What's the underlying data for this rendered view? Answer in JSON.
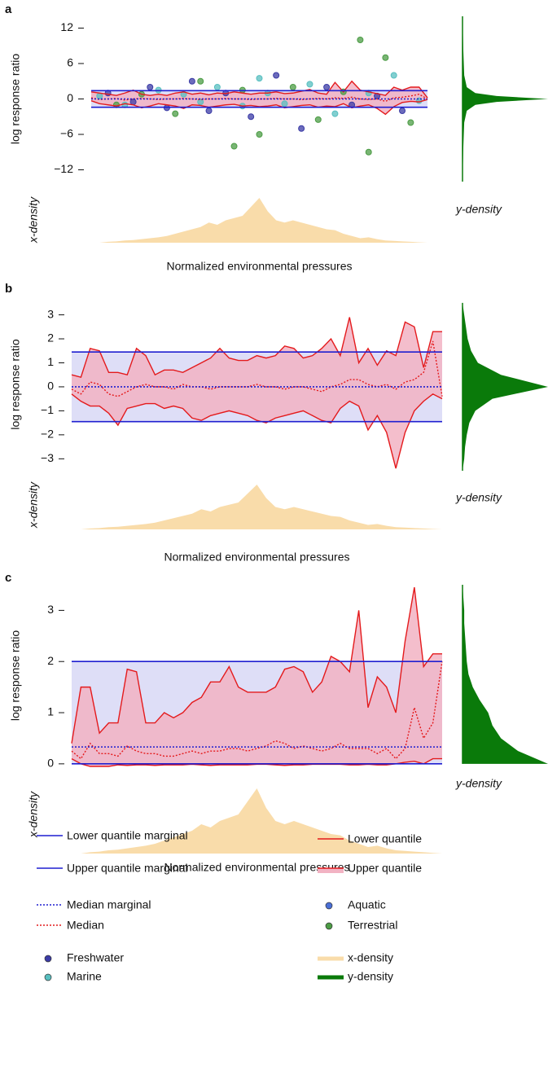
{
  "chart_data": [
    {
      "type": "scatter",
      "panel": "a",
      "ylabel": "log response ratio",
      "xlabel": "Normalized environmental pressures",
      "x_density_label": "x-density",
      "y_density_label": "y-density",
      "ylim": [
        -14,
        14
      ],
      "yticks": [
        {
          "value": -12,
          "label": "−12"
        },
        {
          "value": -6,
          "label": "−6"
        },
        0,
        6,
        12
      ],
      "xlim": [
        0,
        40
      ],
      "x": [
        0,
        1,
        2,
        3,
        4,
        5,
        6,
        7,
        8,
        9,
        10,
        11,
        12,
        13,
        14,
        15,
        16,
        17,
        18,
        19,
        20,
        21,
        22,
        23,
        24,
        25,
        26,
        27,
        28,
        29,
        30,
        31,
        32,
        33,
        34,
        35,
        36,
        37,
        38,
        39,
        40
      ],
      "upper_quantile": [
        1.2,
        1.0,
        0.8,
        0.6,
        1.0,
        1.5,
        0.8,
        0.6,
        0.8,
        0.6,
        1.0,
        1.2,
        0.8,
        1.0,
        0.7,
        1.0,
        0.9,
        1.2,
        1.0,
        0.8,
        1.0,
        1.0,
        1.2,
        0.9,
        1.0,
        1.3,
        1.6,
        1.0,
        0.8,
        2.8,
        1.2,
        3.0,
        1.5,
        1.2,
        0.9,
        0.6,
        2.0,
        1.5,
        2.0,
        2.0,
        0.2
      ],
      "lower_quantile": [
        -0.3,
        -0.8,
        -1,
        -1.2,
        -0.8,
        -1,
        -1.5,
        -1.2,
        -0.8,
        -1,
        -1.2,
        -1.6,
        -1,
        -1.1,
        -1.4,
        -1.2,
        -1,
        -0.9,
        -1.2,
        -1.1,
        -1.3,
        -1.2,
        -1,
        -1.5,
        -1.3,
        -1.1,
        -1,
        -1.4,
        -1.2,
        -1.3,
        -0.8,
        -1.5,
        -1.2,
        -1,
        -1.6,
        -2.6,
        -1.3,
        -0.6,
        -0.4,
        -0.5,
        -0.1
      ],
      "median": [
        0.2,
        -0.1,
        0,
        0.1,
        -0.2,
        0,
        0.1,
        0,
        -0.1,
        0,
        0,
        0.1,
        0,
        -0.1,
        0,
        0,
        0.1,
        0,
        0,
        -0.1,
        0,
        0,
        0.1,
        0,
        0,
        -0.1,
        0,
        0.1,
        0,
        0.2,
        0.1,
        0.3,
        0,
        -0.1,
        0,
        -0.4,
        0.2,
        0.3,
        0.5,
        0.8,
        0
      ],
      "marginals": {
        "lower": -1.4,
        "upper": 1.4,
        "median": 0
      },
      "points": [
        {
          "color": "#3b3ba6",
          "x": [
            2,
            5,
            7,
            9,
            12,
            14,
            16,
            19,
            22,
            25,
            28,
            31,
            34,
            37
          ],
          "y": [
            1,
            -0.5,
            2,
            -1.5,
            3,
            -2,
            1,
            -3,
            4,
            -5,
            2,
            -1,
            0.5,
            -2
          ]
        },
        {
          "color": "#58bfc0",
          "x": [
            1,
            4,
            8,
            11,
            13,
            15,
            18,
            20,
            21,
            23,
            26,
            29,
            33,
            36,
            39
          ],
          "y": [
            0.5,
            -1,
            1.5,
            0.8,
            -0.5,
            2,
            -1.2,
            3.5,
            1,
            -0.8,
            2.5,
            -2.5,
            1,
            4,
            -0.3
          ]
        },
        {
          "color": "#4c9c45",
          "x": [
            3,
            6,
            10,
            13,
            17,
            18,
            20,
            24,
            27,
            30,
            32,
            33,
            35,
            38
          ],
          "y": [
            -1,
            0.8,
            -2.5,
            3,
            -8,
            1.5,
            -6,
            2,
            -3.5,
            1.2,
            10,
            -9,
            7,
            -4
          ]
        }
      ],
      "x_density": [
        0,
        0,
        0.02,
        0.03,
        0.05,
        0.06,
        0.08,
        0.1,
        0.12,
        0.15,
        0.2,
        0.25,
        0.3,
        0.35,
        0.45,
        0.4,
        0.5,
        0.55,
        0.6,
        0.8,
        1.0,
        0.7,
        0.5,
        0.45,
        0.5,
        0.45,
        0.4,
        0.35,
        0.3,
        0.28,
        0.2,
        0.15,
        0.1,
        0.12,
        0.08,
        0.05,
        0.04,
        0.03,
        0.02,
        0.01,
        0
      ],
      "y_density": {
        "y": [
          -14,
          -8,
          -4,
          -2,
          -1,
          -0.5,
          0,
          0.5,
          1,
          2,
          4,
          8,
          14
        ],
        "values": [
          0,
          0.01,
          0.02,
          0.05,
          0.15,
          0.4,
          1.0,
          0.4,
          0.15,
          0.05,
          0.02,
          0.01,
          0
        ]
      }
    },
    {
      "type": "quantile",
      "panel": "b",
      "ylabel": "log response ratio",
      "xlabel": "Normalized environmental pressures",
      "x_density_label": "x-density",
      "y_density_label": "y-density",
      "ylim": [
        -3.6,
        3.8
      ],
      "yticks": [
        {
          "value": -3,
          "label": "−3"
        },
        {
          "value": -2,
          "label": "−2"
        },
        {
          "value": -1,
          "label": "−1"
        },
        0,
        1,
        2,
        3
      ],
      "xlim": [
        0,
        40
      ],
      "x": [
        0,
        1,
        2,
        3,
        4,
        5,
        6,
        7,
        8,
        9,
        10,
        11,
        12,
        13,
        14,
        15,
        16,
        17,
        18,
        19,
        20,
        21,
        22,
        23,
        24,
        25,
        26,
        27,
        28,
        29,
        30,
        31,
        32,
        33,
        34,
        35,
        36,
        37,
        38,
        39,
        40
      ],
      "upper_quantile": [
        0.5,
        0.4,
        1.6,
        1.5,
        0.6,
        0.6,
        0.5,
        1.6,
        1.3,
        0.5,
        0.7,
        0.7,
        0.6,
        0.8,
        1.0,
        1.2,
        1.6,
        1.2,
        1.1,
        1.1,
        1.3,
        1.2,
        1.3,
        1.7,
        1.6,
        1.2,
        1.3,
        1.6,
        2.0,
        1.3,
        2.9,
        1.0,
        1.6,
        0.9,
        1.5,
        1.3,
        2.7,
        2.5,
        0.8,
        2.3,
        2.3
      ],
      "lower_quantile": [
        -0.3,
        -0.6,
        -0.8,
        -0.8,
        -1.1,
        -1.6,
        -0.9,
        -0.8,
        -0.7,
        -0.7,
        -0.9,
        -0.8,
        -0.9,
        -1.3,
        -1.4,
        -1.2,
        -1.1,
        -1.0,
        -1.1,
        -1.2,
        -1.4,
        -1.5,
        -1.3,
        -1.2,
        -1.1,
        -1.0,
        -1.2,
        -1.4,
        -1.5,
        -0.9,
        -0.6,
        -0.8,
        -1.8,
        -1.2,
        -1.9,
        -3.4,
        -1.9,
        -1.0,
        -0.6,
        -0.3,
        -0.5
      ],
      "median": [
        -0.1,
        -0.3,
        0.2,
        0.1,
        -0.3,
        -0.4,
        -0.2,
        0,
        0.1,
        0,
        0,
        -0.1,
        0.1,
        0,
        0,
        -0.1,
        0,
        0,
        0,
        0,
        0.1,
        0,
        0,
        -0.1,
        0,
        0,
        -0.1,
        -0.2,
        0,
        0.1,
        0.3,
        0.3,
        0.1,
        0,
        0.1,
        -0.1,
        0.2,
        0.3,
        0.6,
        1.9,
        -0.4
      ],
      "marginals": {
        "lower": -1.45,
        "upper": 1.45,
        "median": 0
      },
      "x_density": [
        0,
        0,
        0.02,
        0.03,
        0.05,
        0.06,
        0.08,
        0.1,
        0.12,
        0.15,
        0.2,
        0.25,
        0.3,
        0.35,
        0.45,
        0.4,
        0.5,
        0.55,
        0.6,
        0.8,
        1.0,
        0.7,
        0.5,
        0.45,
        0.5,
        0.45,
        0.4,
        0.35,
        0.3,
        0.28,
        0.2,
        0.15,
        0.1,
        0.12,
        0.08,
        0.05,
        0.04,
        0.03,
        0.02,
        0.01,
        0
      ],
      "y_density": {
        "y": [
          -3.5,
          -3,
          -2.5,
          -2,
          -1.5,
          -1,
          -0.5,
          0,
          0.5,
          1,
          1.5,
          2,
          2.5,
          3,
          3.5
        ],
        "values": [
          0,
          0.02,
          0.03,
          0.05,
          0.08,
          0.15,
          0.35,
          1.0,
          0.45,
          0.18,
          0.1,
          0.06,
          0.04,
          0.02,
          0
        ]
      }
    },
    {
      "type": "quantile",
      "panel": "c",
      "ylabel": "log response ratio",
      "xlabel": "Normalized environmental pressures",
      "x_density_label": "x-density",
      "y_density_label": "y-density",
      "ylim": [
        -0.05,
        3.5
      ],
      "yticks": [
        0,
        1,
        2,
        3
      ],
      "xlim": [
        0,
        40
      ],
      "x": [
        0,
        1,
        2,
        3,
        4,
        5,
        6,
        7,
        8,
        9,
        10,
        11,
        12,
        13,
        14,
        15,
        16,
        17,
        18,
        19,
        20,
        21,
        22,
        23,
        24,
        25,
        26,
        27,
        28,
        29,
        30,
        31,
        32,
        33,
        34,
        35,
        36,
        37,
        38,
        39,
        40
      ],
      "upper_quantile": [
        0.4,
        1.5,
        1.5,
        0.6,
        0.8,
        0.8,
        1.85,
        1.8,
        0.8,
        0.8,
        1.0,
        0.9,
        1.0,
        1.2,
        1.3,
        1.6,
        1.6,
        1.9,
        1.5,
        1.4,
        1.4,
        1.4,
        1.5,
        1.85,
        1.9,
        1.8,
        1.4,
        1.6,
        2.1,
        2.0,
        1.8,
        3.0,
        1.1,
        1.7,
        1.5,
        1.0,
        2.4,
        3.45,
        1.9,
        2.15,
        2.15
      ],
      "lower_quantile": [
        0.1,
        0.0,
        -0.05,
        -0.05,
        -0.05,
        -0.02,
        -0.03,
        -0.02,
        -0.02,
        -0.03,
        -0.02,
        -0.02,
        -0.02,
        -0.01,
        -0.02,
        -0.03,
        -0.02,
        -0.02,
        -0.02,
        -0.02,
        -0.01,
        -0.01,
        -0.02,
        -0.03,
        -0.02,
        -0.02,
        -0.01,
        -0.01,
        -0.01,
        -0.01,
        -0.02,
        -0.02,
        -0.01,
        -0.02,
        -0.02,
        0.0,
        0.03,
        0.05,
        0.0,
        0.1,
        0.1
      ],
      "median": [
        0.25,
        0.1,
        0.4,
        0.2,
        0.2,
        0.15,
        0.35,
        0.25,
        0.2,
        0.2,
        0.15,
        0.15,
        0.2,
        0.25,
        0.2,
        0.25,
        0.25,
        0.3,
        0.3,
        0.25,
        0.3,
        0.35,
        0.45,
        0.4,
        0.3,
        0.35,
        0.3,
        0.25,
        0.3,
        0.4,
        0.3,
        0.3,
        0.3,
        0.2,
        0.3,
        0.1,
        0.3,
        1.1,
        0.5,
        0.8,
        2.0
      ],
      "marginals": {
        "lower": 0,
        "upper": 2,
        "median": 0.33
      },
      "x_density": [
        0,
        0,
        0.02,
        0.03,
        0.05,
        0.06,
        0.08,
        0.1,
        0.12,
        0.15,
        0.2,
        0.25,
        0.3,
        0.35,
        0.45,
        0.4,
        0.5,
        0.55,
        0.6,
        0.8,
        1.0,
        0.7,
        0.5,
        0.45,
        0.5,
        0.45,
        0.4,
        0.35,
        0.3,
        0.28,
        0.2,
        0.15,
        0.1,
        0.12,
        0.08,
        0.05,
        0.04,
        0.03,
        0.02,
        0.01,
        0
      ],
      "y_density": {
        "y": [
          0,
          0.25,
          0.5,
          0.75,
          1,
          1.25,
          1.5,
          1.75,
          2,
          2.25,
          2.5,
          2.75,
          3,
          3.25,
          3.5
        ],
        "values": [
          1.0,
          0.65,
          0.45,
          0.35,
          0.3,
          0.2,
          0.12,
          0.07,
          0.05,
          0.04,
          0.03,
          0.02,
          0.02,
          0.01,
          0
        ]
      }
    }
  ],
  "colors": {
    "quantile": "#e41a1c",
    "quantile_band": "#f2b3c3",
    "marginal": "#1f1fd0",
    "marginal_band": "#dedef7",
    "x_density": "#f9dcaa",
    "y_density": "#0a7a0a"
  },
  "legend": [
    {
      "label": "Lower quantile marginal",
      "color": "#1f1fd0",
      "style": "line"
    },
    {
      "label": "Upper quantile marginal",
      "color": "#1f1fd0",
      "style": "line"
    },
    {
      "label": "Median marginal",
      "color": "#1f1fd0",
      "style": "dotted"
    },
    {
      "label": "Median",
      "color": "#e41a1c",
      "style": "dotted"
    },
    {
      "label": "Freshwater",
      "color": "#3b3ba6",
      "style": "dot"
    },
    {
      "label": "Marine",
      "color": "#58bfc0",
      "style": "dot"
    },
    {
      "label": "Lower quantile",
      "color": "#e41a1c",
      "style": "line"
    },
    {
      "label": "Upper quantile",
      "color": "#e41a1c",
      "style": "band"
    },
    {
      "label": "Aquatic",
      "color": "#4a6fd6",
      "style": "dot"
    },
    {
      "label": "Terrestrial",
      "color": "#4c9c45",
      "style": "dot"
    },
    {
      "label": "x-density",
      "color": "#f9dcaa",
      "style": "thick"
    },
    {
      "label": "y-density",
      "color": "#0a7a0a",
      "style": "thick"
    }
  ]
}
